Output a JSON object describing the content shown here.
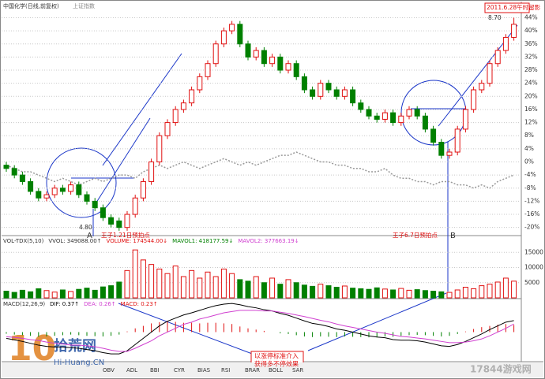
{
  "chart_data": [
    {
      "type": "candlestick",
      "title": "中国化学(日线,前复权)",
      "subtitle": "上证指数",
      "ylim": [
        -22,
        47
      ],
      "yticks": [
        {
          "value": 44,
          "label": "44%"
        },
        {
          "value": 40,
          "label": "40%"
        },
        {
          "value": 36,
          "label": "36%"
        },
        {
          "value": 32,
          "label": "32%"
        },
        {
          "value": 28,
          "label": "28%"
        },
        {
          "value": 24,
          "label": "24%"
        },
        {
          "value": 20,
          "label": "20%"
        },
        {
          "value": 16,
          "label": "16%"
        },
        {
          "value": 12,
          "label": "12%"
        },
        {
          "value": 8,
          "label": "8%"
        },
        {
          "value": 4,
          "label": "4%"
        },
        {
          "value": 0,
          "label": "0%"
        },
        {
          "value": -4,
          "label": "-4%"
        },
        {
          "value": -8,
          "label": "-8%"
        },
        {
          "value": -12,
          "label": "-12%"
        },
        {
          "value": -16,
          "label": "-16%"
        },
        {
          "value": -20,
          "label": "-20%"
        }
      ],
      "grid": true,
      "up_color": "#e01010",
      "down_color": "#008000",
      "index_color": "#999999",
      "candles": {
        "open": [
          -1,
          -2,
          -4,
          -6,
          -9,
          -11,
          -10,
          -8,
          -9,
          -7,
          -10,
          -12,
          -14,
          -17,
          -18,
          -20,
          -16,
          -11,
          -6,
          0,
          8,
          12,
          16,
          18,
          22,
          26,
          30,
          36,
          40,
          42,
          36,
          32,
          34,
          30,
          32,
          28,
          30,
          26,
          22,
          20,
          24,
          22,
          20,
          22,
          18,
          16,
          14,
          13,
          15,
          12,
          14,
          16,
          14,
          10,
          6,
          2,
          3,
          10,
          16,
          22,
          24,
          30,
          34,
          38
        ],
        "close": [
          -2,
          -4,
          -6,
          -9,
          -11,
          -10,
          -8,
          -9,
          -7,
          -10,
          -12,
          -14,
          -17,
          -19,
          -20,
          -16,
          -11,
          -6,
          0,
          8,
          12,
          16,
          18,
          22,
          26,
          30,
          36,
          40,
          42,
          36,
          32,
          34,
          30,
          32,
          28,
          30,
          26,
          22,
          20,
          24,
          22,
          20,
          22,
          18,
          16,
          14,
          13,
          15,
          12,
          14,
          16,
          14,
          10,
          6,
          2,
          3,
          10,
          16,
          22,
          24,
          30,
          34,
          38,
          42
        ],
        "high": [
          0,
          -1,
          -3,
          -5,
          -8,
          -9,
          -7,
          -7,
          -6,
          -6,
          -9,
          -11,
          -13,
          -16,
          -17,
          -15,
          -10,
          -5,
          1,
          9,
          13,
          17,
          19,
          23,
          27,
          31,
          37,
          41,
          43,
          43,
          37,
          35,
          35,
          33,
          33,
          31,
          31,
          27,
          23,
          25,
          25,
          23,
          23,
          23,
          19,
          17,
          15,
          16,
          16,
          15,
          17,
          17,
          15,
          11,
          7,
          4,
          11,
          17,
          23,
          25,
          31,
          35,
          39,
          44
        ],
        "low": [
          -3,
          -5,
          -7,
          -10,
          -12,
          -12,
          -11,
          -10,
          -10,
          -11,
          -13,
          -15,
          -18,
          -20,
          -21,
          -21,
          -17,
          -12,
          -7,
          -1,
          7,
          11,
          15,
          17,
          21,
          25,
          29,
          35,
          39,
          35,
          31,
          31,
          29,
          29,
          27,
          27,
          25,
          21,
          19,
          19,
          21,
          19,
          19,
          17,
          15,
          13,
          12,
          12,
          11,
          11,
          13,
          13,
          9,
          5,
          1,
          1,
          2,
          9,
          15,
          21,
          23,
          29,
          33,
          37
        ]
      },
      "index_name": "上证指数",
      "index_values": [
        -1,
        -2,
        -3,
        -3,
        -4,
        -5,
        -6,
        -5,
        -6,
        -7,
        -6,
        -5,
        -6,
        -5,
        -4,
        -4,
        -5,
        -3,
        -2,
        -1,
        -2,
        -1,
        0,
        -1,
        -2,
        -1,
        0,
        1,
        0,
        -1,
        0,
        -1,
        0,
        1,
        2,
        2,
        3,
        2,
        1,
        0,
        0,
        -1,
        -1,
        -2,
        -2,
        -3,
        -3,
        -2,
        -4,
        -5,
        -5,
        -6,
        -6,
        -7,
        -6,
        -6,
        -7,
        -7,
        -8,
        -7,
        -8,
        -6,
        -5,
        -4
      ],
      "annotations": [
        "4.80",
        "8.70",
        "A",
        "王子1.21日预拍点",
        "王子6.7日预拍点",
        "B",
        "2011.6.28午时留影"
      ]
    },
    {
      "type": "bar",
      "legend": [
        "VOL-TDX(5,10)",
        "VVOL: 349088.00↑",
        "VOLUME: 174544.00↓",
        "MAVOL1: 418177.59↓",
        "MAVOL2: 377663.19↓"
      ],
      "ylim": [
        0,
        20000
      ],
      "yticks": [
        5000,
        10000,
        15000
      ],
      "values": [
        2200,
        1800,
        2500,
        2000,
        3000,
        2400,
        1900,
        2600,
        2100,
        2800,
        3200,
        2500,
        3600,
        4000,
        5200,
        9000,
        15800,
        12500,
        11000,
        9500,
        8000,
        10500,
        7000,
        9000,
        6500,
        8500,
        7000,
        9500,
        8000,
        6000,
        5500,
        7000,
        5000,
        6500,
        4500,
        6000,
        5000,
        4200,
        3800,
        4500,
        4000,
        3500,
        3900,
        3200,
        3000,
        2800,
        3300,
        2900,
        2600,
        3100,
        2500,
        2700,
        2400,
        2200,
        2000,
        1800,
        2600,
        3500,
        3000,
        4000,
        4500,
        5200,
        6500,
        5500
      ]
    },
    {
      "type": "macd",
      "legend": [
        "MACD(12,26,9)",
        "DIF: 0.37↑",
        "DEA: 0.26↑",
        "MACD: 0.23↑"
      ],
      "ylim": [
        -0.9,
        1.0
      ],
      "series": [
        {
          "name": "DIF",
          "color": "#000000",
          "values": [
            -0.2,
            -0.25,
            -0.3,
            -0.36,
            -0.42,
            -0.46,
            -0.48,
            -0.48,
            -0.5,
            -0.52,
            -0.56,
            -0.6,
            -0.66,
            -0.7,
            -0.7,
            -0.6,
            -0.4,
            -0.2,
            0,
            0.2,
            0.35,
            0.45,
            0.55,
            0.62,
            0.7,
            0.78,
            0.85,
            0.9,
            0.92,
            0.88,
            0.82,
            0.78,
            0.72,
            0.68,
            0.6,
            0.54,
            0.45,
            0.36,
            0.28,
            0.24,
            0.18,
            0.1,
            0.06,
            0,
            -0.06,
            -0.12,
            -0.16,
            -0.18,
            -0.24,
            -0.26,
            -0.26,
            -0.28,
            -0.32,
            -0.38,
            -0.44,
            -0.46,
            -0.4,
            -0.3,
            -0.18,
            -0.06,
            0.08,
            0.2,
            0.32,
            0.37
          ]
        },
        {
          "name": "DEA",
          "color": "#d040d0",
          "values": [
            -0.15,
            -0.17,
            -0.2,
            -0.24,
            -0.27,
            -0.32,
            -0.36,
            -0.38,
            -0.42,
            -0.42,
            -0.44,
            -0.47,
            -0.52,
            -0.58,
            -0.62,
            -0.62,
            -0.52,
            -0.4,
            -0.28,
            -0.12,
            0,
            0.12,
            0.25,
            0.32,
            0.42,
            0.48,
            0.55,
            0.62,
            0.66,
            0.7,
            0.7,
            0.7,
            0.68,
            0.68,
            0.64,
            0.6,
            0.55,
            0.5,
            0.44,
            0.38,
            0.33,
            0.26,
            0.2,
            0.15,
            0.1,
            0.05,
            0,
            -0.04,
            -0.09,
            -0.14,
            -0.16,
            -0.19,
            -0.22,
            -0.26,
            -0.3,
            -0.34,
            -0.34,
            -0.32,
            -0.28,
            -0.22,
            -0.12,
            0,
            0.12,
            0.26
          ]
        }
      ],
      "histogram": [
        -0.05,
        -0.08,
        -0.1,
        -0.12,
        -0.15,
        -0.14,
        -0.12,
        -0.1,
        -0.08,
        -0.1,
        -0.12,
        -0.13,
        -0.14,
        -0.12,
        -0.08,
        0.02,
        0.12,
        0.2,
        0.28,
        0.32,
        0.35,
        0.33,
        0.3,
        0.3,
        0.28,
        0.3,
        0.3,
        0.28,
        0.26,
        0.18,
        0.12,
        0.08,
        0.04,
        0,
        -0.04,
        -0.06,
        -0.1,
        -0.14,
        -0.16,
        -0.14,
        -0.15,
        -0.16,
        -0.14,
        -0.15,
        -0.16,
        -0.17,
        -0.16,
        -0.14,
        -0.15,
        -0.12,
        -0.1,
        -0.09,
        -0.1,
        -0.12,
        -0.14,
        -0.12,
        -0.06,
        0.02,
        0.1,
        0.16,
        0.2,
        0.24,
        0.26,
        0.23
      ],
      "annotations": [
        "以涨停标准介入",
        "获得多不停效果"
      ]
    }
  ],
  "tabs": [
    "OBV",
    "ADL",
    "BBI",
    "CYR",
    "BIAS",
    "RSI",
    "BRAR",
    "BOLL",
    "SAR"
  ],
  "watermark": [
    "拾荒网",
    "Hi-Huang.CN",
    "17844游戏网"
  ]
}
